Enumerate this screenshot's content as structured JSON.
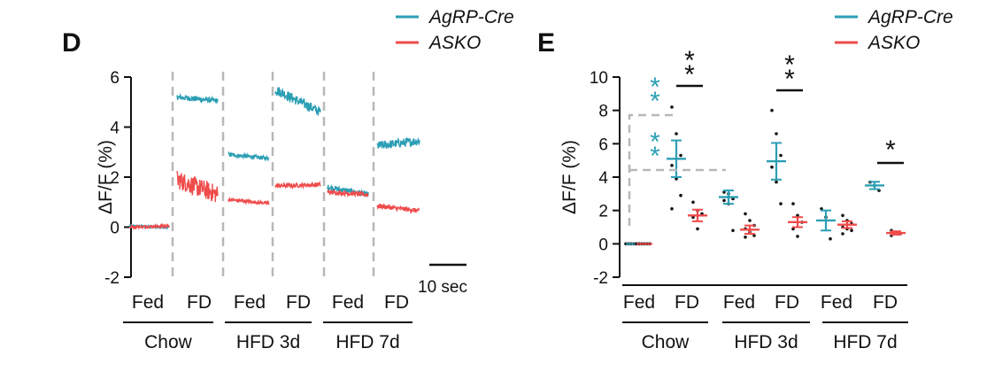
{
  "colors": {
    "agrp": "#2b9fb4",
    "asko": "#ef4b4b",
    "divider": "#b8b8b8",
    "axis": "#111111",
    "dot": "#111111"
  },
  "chart_data": [
    {
      "panel": "D",
      "type": "line",
      "legend": [
        "AgRP-Cre",
        "ASKO"
      ],
      "ylabel": "ΔF/F (%)",
      "ylim": [
        -2,
        6
      ],
      "yticks": [
        -2,
        0,
        2,
        4,
        6
      ],
      "ytick_labels": [
        "-2",
        "0",
        "2",
        "4",
        "6"
      ],
      "scale_bar_label": "10 sec",
      "conditions": [
        "Fed",
        "FD",
        "Fed",
        "FD",
        "Fed",
        "FD"
      ],
      "groups": [
        "Chow",
        "HFD 3d",
        "HFD 7d"
      ],
      "series": [
        {
          "name": "AgRP-Cre",
          "segments": [
            {
              "condition": "Fed",
              "group": "Chow",
              "start": 0.05,
              "end": -0.02,
              "noise": 0.08
            },
            {
              "condition": "FD",
              "group": "Chow",
              "start": 5.2,
              "end": 5.05,
              "noise": 0.22
            },
            {
              "condition": "Fed",
              "group": "HFD 3d",
              "start": 2.9,
              "end": 2.75,
              "noise": 0.16
            },
            {
              "condition": "FD",
              "group": "HFD 3d",
              "start": 5.5,
              "end": 4.6,
              "noise": 0.4
            },
            {
              "condition": "Fed",
              "group": "HFD 7d",
              "start": 1.6,
              "end": 1.3,
              "noise": 0.22
            },
            {
              "condition": "FD",
              "group": "HFD 7d",
              "start": 3.25,
              "end": 3.45,
              "noise": 0.35
            }
          ]
        },
        {
          "name": "ASKO",
          "segments": [
            {
              "condition": "Fed",
              "group": "Chow",
              "start": 0.0,
              "end": 0.05,
              "noise": 0.1
            },
            {
              "condition": "FD",
              "group": "Chow",
              "start": 1.9,
              "end": 1.3,
              "noise": 0.75
            },
            {
              "condition": "Fed",
              "group": "HFD 3d",
              "start": 1.1,
              "end": 0.95,
              "noise": 0.13
            },
            {
              "condition": "FD",
              "group": "HFD 3d",
              "start": 1.65,
              "end": 1.7,
              "noise": 0.18
            },
            {
              "condition": "Fed",
              "group": "HFD 7d",
              "start": 1.4,
              "end": 1.3,
              "noise": 0.18
            },
            {
              "condition": "FD",
              "group": "HFD 7d",
              "start": 0.85,
              "end": 0.65,
              "noise": 0.18
            }
          ]
        }
      ]
    },
    {
      "panel": "E",
      "type": "scatter",
      "legend": [
        "AgRP-Cre",
        "ASKO"
      ],
      "ylabel": "ΔF/F (%)",
      "ylim": [
        -2,
        10
      ],
      "yticks": [
        -2,
        0,
        2,
        4,
        6,
        8,
        10
      ],
      "ytick_labels": [
        "-2",
        "0",
        "2",
        "4",
        "6",
        "8",
        "10"
      ],
      "conditions": [
        "Fed",
        "FD",
        "Fed",
        "FD",
        "Fed",
        "FD"
      ],
      "groups": [
        "Chow",
        "HFD 3d",
        "HFD 7d"
      ],
      "series": [
        {
          "name": "AgRP-Cre",
          "mean": [
            0.0,
            5.1,
            2.8,
            4.95,
            1.4,
            3.5
          ],
          "sem": [
            0.04,
            1.1,
            0.4,
            1.1,
            0.6,
            0.22
          ],
          "points": [
            [
              0,
              0,
              0,
              0,
              0,
              0
            ],
            [
              8.2,
              6.6,
              5.3,
              4.7,
              3.9,
              2.9,
              2.1
            ],
            [
              3.1,
              3.0,
              2.7,
              2.6,
              2.4,
              0.8
            ],
            [
              8.0,
              6.6,
              5.3,
              4.6,
              3.7,
              2.4
            ],
            [
              2.1,
              1.6,
              0.3
            ],
            [
              3.7,
              3.5,
              3.2
            ]
          ]
        },
        {
          "name": "ASKO",
          "mean": [
            0.0,
            1.7,
            0.85,
            1.3,
            1.15,
            0.65
          ],
          "sem": [
            0.04,
            0.35,
            0.25,
            0.3,
            0.2,
            0.1
          ],
          "points": [
            [
              0,
              0,
              0,
              0,
              0,
              0
            ],
            [
              2.5,
              2.0,
              1.8,
              1.6,
              0.9
            ],
            [
              1.8,
              1.4,
              1.1,
              0.9,
              0.7,
              0.5,
              0.4
            ],
            [
              2.4,
              1.7,
              1.3,
              0.9,
              0.45
            ],
            [
              1.7,
              1.4,
              1.2,
              1.0,
              0.9,
              0.8,
              0.6
            ],
            [
              0.8,
              0.7,
              0.6,
              0.5
            ]
          ]
        }
      ],
      "significance": [
        {
          "condition_index": 1,
          "label": "**",
          "color": "black"
        },
        {
          "condition_index": 3,
          "label": "**",
          "color": "black"
        },
        {
          "condition_index": 5,
          "label": "*",
          "color": "black"
        },
        {
          "between": "Chow Fed vs FD (upper)",
          "label": "**",
          "color": "teal"
        },
        {
          "between": "Chow Fed vs FD (lower)",
          "label": "**",
          "color": "teal"
        }
      ]
    }
  ]
}
